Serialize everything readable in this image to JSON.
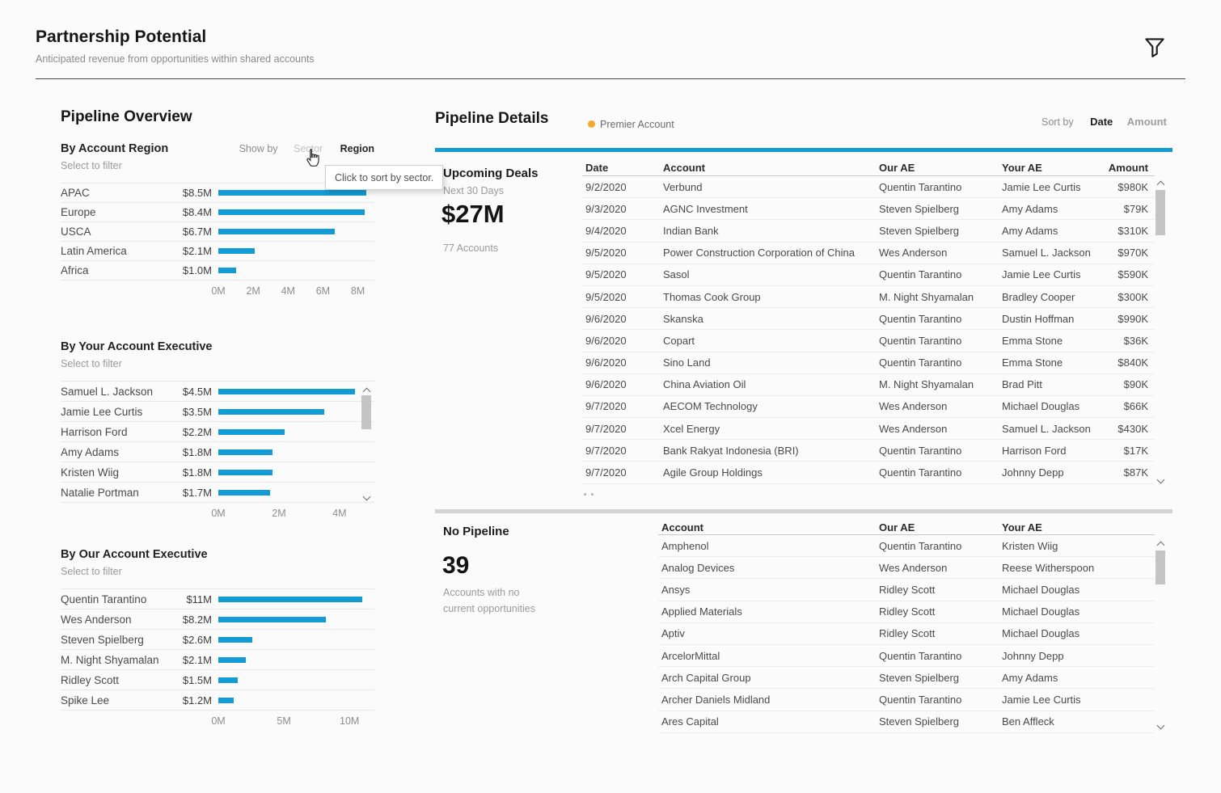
{
  "header": {
    "title": "Partnership Potential",
    "subtitle": "Anticipated revenue from opportunities within shared accounts"
  },
  "colors": {
    "bar_blue": "#129bd5",
    "premier_orange": "#f7a827"
  },
  "overview": {
    "title": "Pipeline Overview",
    "show_by": {
      "label": "Show by",
      "options": [
        "Sector",
        "Region"
      ],
      "selected": "Region"
    },
    "tooltip": "Click to sort by sector."
  },
  "chart_data": [
    {
      "type": "bar",
      "title": "By Account Region",
      "subtitle": "Select to filter",
      "categories": [
        "APAC",
        "Europe",
        "USCA",
        "Latin America",
        "Africa"
      ],
      "values": [
        8.5,
        8.4,
        6.7,
        2.1,
        1.0
      ],
      "value_labels": [
        "$8.5M",
        "$8.4M",
        "$6.7M",
        "$2.1M",
        "$1.0M"
      ],
      "unit": "M USD",
      "ticks": [
        "0M",
        "2M",
        "4M",
        "6M",
        "8M"
      ],
      "tick_values": [
        0,
        2,
        4,
        6,
        8
      ],
      "xlim": [
        0,
        8.95
      ],
      "orientation": "horizontal",
      "bar_color": "#129bd5"
    },
    {
      "type": "bar",
      "title": "By Your Account Executive",
      "subtitle": "Select to filter",
      "categories": [
        "Samuel L. Jackson",
        "Jamie Lee Curtis",
        "Harrison Ford",
        "Amy Adams",
        "Kristen Wiig",
        "Natalie Portman"
      ],
      "values": [
        4.5,
        3.5,
        2.2,
        1.8,
        1.8,
        1.7
      ],
      "value_labels": [
        "$4.5M",
        "$3.5M",
        "$2.2M",
        "$1.8M",
        "$1.8M",
        "$1.7M"
      ],
      "unit": "M USD",
      "ticks": [
        "0M",
        "2M",
        "4M"
      ],
      "tick_values": [
        0,
        2,
        4
      ],
      "xlim": [
        0,
        5.15
      ],
      "orientation": "horizontal",
      "bar_color": "#129bd5"
    },
    {
      "type": "bar",
      "title": "By Our Account Executive",
      "subtitle": "Select to filter",
      "categories": [
        "Quentin Tarantino",
        "Wes Anderson",
        "Steven Spielberg",
        "M. Night Shyamalan",
        "Ridley Scott",
        "Spike Lee"
      ],
      "values": [
        11,
        8.2,
        2.6,
        2.1,
        1.5,
        1.2
      ],
      "value_labels": [
        "$11M",
        "$8.2M",
        "$2.6M",
        "$2.1M",
        "$1.5M",
        "$1.2M"
      ],
      "unit": "M USD",
      "ticks": [
        "0M",
        "5M",
        "10M"
      ],
      "tick_values": [
        0,
        5,
        10
      ],
      "xlim": [
        0,
        11.9
      ],
      "orientation": "horizontal",
      "bar_color": "#129bd5"
    }
  ],
  "details": {
    "title": "Pipeline Details",
    "legend": {
      "label": "Premier Account"
    },
    "sort": {
      "label": "Sort by",
      "options": [
        "Date",
        "Amount"
      ],
      "selected": "Date"
    },
    "upcoming": {
      "title": "Upcoming Deals",
      "subtitle": "Next 30 Days",
      "total": "$27M",
      "accounts": "77 Accounts",
      "columns": [
        "Date",
        "Account",
        "Our AE",
        "Your AE",
        "Amount"
      ],
      "rows": [
        {
          "date": "9/2/2020",
          "account": "Verbund",
          "premier": false,
          "our_ae": "Quentin Tarantino",
          "your_ae": "Jamie Lee Curtis",
          "amount": "$980K"
        },
        {
          "date": "9/3/2020",
          "account": "AGNC Investment",
          "premier": true,
          "our_ae": "Steven Spielberg",
          "your_ae": "Amy Adams",
          "amount": "$79K"
        },
        {
          "date": "9/4/2020",
          "account": "Indian Bank",
          "premier": false,
          "our_ae": "Steven Spielberg",
          "your_ae": "Amy Adams",
          "amount": "$310K"
        },
        {
          "date": "9/5/2020",
          "account": "Power Construction Corporation of China",
          "premier": false,
          "our_ae": "Wes Anderson",
          "your_ae": "Samuel L. Jackson",
          "amount": "$970K"
        },
        {
          "date": "9/5/2020",
          "account": "Sasol",
          "premier": false,
          "our_ae": "Quentin Tarantino",
          "your_ae": "Jamie Lee Curtis",
          "amount": "$590K"
        },
        {
          "date": "9/5/2020",
          "account": "Thomas Cook Group",
          "premier": true,
          "our_ae": "M. Night Shyamalan",
          "your_ae": "Bradley Cooper",
          "amount": "$300K"
        },
        {
          "date": "9/6/2020",
          "account": "Skanska",
          "premier": false,
          "our_ae": "Quentin Tarantino",
          "your_ae": "Dustin Hoffman",
          "amount": "$990K"
        },
        {
          "date": "9/6/2020",
          "account": "Copart",
          "premier": false,
          "our_ae": "Quentin Tarantino",
          "your_ae": "Emma Stone",
          "amount": "$36K"
        },
        {
          "date": "9/6/2020",
          "account": "Sino Land",
          "premier": false,
          "our_ae": "Quentin Tarantino",
          "your_ae": "Emma Stone",
          "amount": "$840K"
        },
        {
          "date": "9/6/2020",
          "account": "China Aviation Oil",
          "premier": false,
          "our_ae": "M. Night Shyamalan",
          "your_ae": "Brad Pitt",
          "amount": "$90K"
        },
        {
          "date": "9/7/2020",
          "account": "AECOM Technology",
          "premier": false,
          "our_ae": "Wes Anderson",
          "your_ae": "Michael Douglas",
          "amount": "$66K"
        },
        {
          "date": "9/7/2020",
          "account": "Xcel Energy",
          "premier": false,
          "our_ae": "Wes Anderson",
          "your_ae": "Samuel L. Jackson",
          "amount": "$430K"
        },
        {
          "date": "9/7/2020",
          "account": "Bank Rakyat Indonesia (BRI)",
          "premier": false,
          "our_ae": "Quentin Tarantino",
          "your_ae": "Harrison Ford",
          "amount": "$17K"
        },
        {
          "date": "9/7/2020",
          "account": "Agile Group Holdings",
          "premier": false,
          "our_ae": "Quentin Tarantino",
          "your_ae": "Johnny Depp",
          "amount": "$87K"
        }
      ]
    },
    "no_pipeline": {
      "title": "No Pipeline",
      "count": "39",
      "subtitle": "Accounts with no\ncurrent opportunities",
      "columns": [
        "Account",
        "Our AE",
        "Your AE"
      ],
      "rows": [
        {
          "account": "Amphenol",
          "our_ae": "Quentin Tarantino",
          "your_ae": "Kristen Wiig"
        },
        {
          "account": "Analog Devices",
          "our_ae": "Wes Anderson",
          "your_ae": "Reese Witherspoon"
        },
        {
          "account": "Ansys",
          "our_ae": "Ridley Scott",
          "your_ae": "Michael Douglas"
        },
        {
          "account": "Applied Materials",
          "our_ae": "Ridley Scott",
          "your_ae": "Michael Douglas"
        },
        {
          "account": "Aptiv",
          "our_ae": "Ridley Scott",
          "your_ae": "Michael Douglas"
        },
        {
          "account": "ArcelorMittal",
          "our_ae": "Quentin Tarantino",
          "your_ae": "Johnny Depp"
        },
        {
          "account": "Arch Capital Group",
          "our_ae": "Steven Spielberg",
          "your_ae": "Amy Adams"
        },
        {
          "account": "Archer Daniels Midland",
          "our_ae": "Quentin Tarantino",
          "your_ae": "Jamie Lee Curtis"
        },
        {
          "account": "Ares Capital",
          "our_ae": "Steven Spielberg",
          "your_ae": "Ben Affleck"
        }
      ]
    }
  }
}
